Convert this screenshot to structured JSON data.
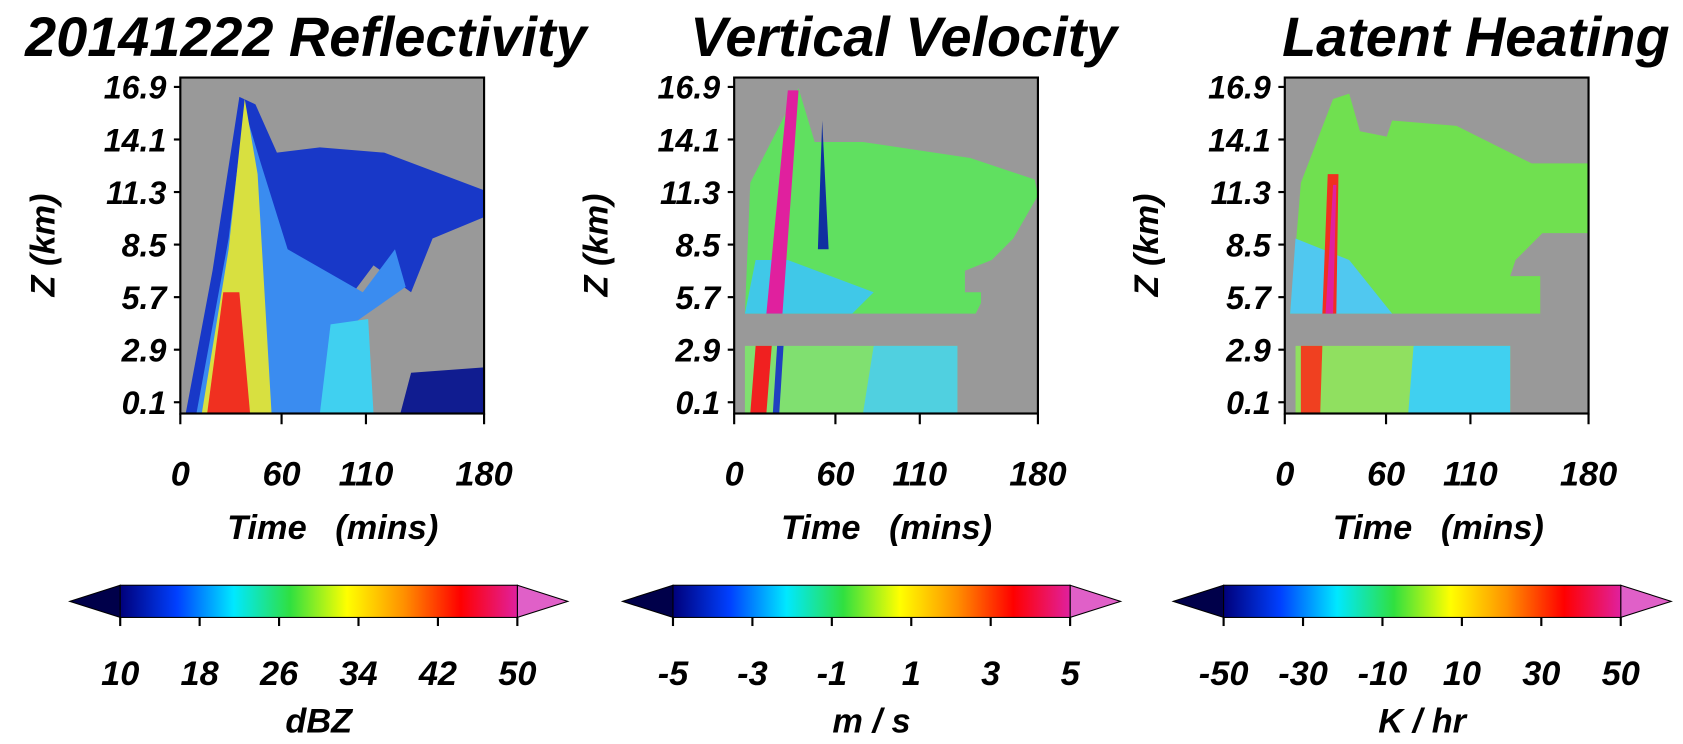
{
  "chart_data": [
    {
      "type": "heatmap",
      "title": "20141222 Reflectivity",
      "xlabel": "Time   (mins)",
      "ylabel": "Z (km)",
      "xlim": [
        0,
        180
      ],
      "xticks": [
        0,
        60,
        110,
        180
      ],
      "ylim": [
        -0.5,
        17.4
      ],
      "yticks": [
        0.1,
        2.9,
        5.7,
        8.5,
        11.3,
        14.1,
        16.9
      ],
      "background": "#999999",
      "colorbar": {
        "label": "dBZ",
        "lim": [
          10,
          50
        ],
        "ticks": [
          10,
          18,
          26,
          34,
          42,
          50
        ],
        "colors": [
          "#00007a",
          "#0040ff",
          "#00e8ff",
          "#30e040",
          "#ffff00",
          "#ff9000",
          "#ff0000",
          "#e0209e"
        ],
        "extend_colors": [
          "#00004a",
          "#e060c8"
        ]
      }
    },
    {
      "type": "heatmap",
      "title": "Vertical Velocity",
      "xlabel": "Time   (mins)",
      "ylabel": "Z (km)",
      "xlim": [
        0,
        180
      ],
      "xticks": [
        0,
        60,
        110,
        180
      ],
      "ylim": [
        -0.5,
        17.4
      ],
      "yticks": [
        0.1,
        2.9,
        5.7,
        8.5,
        11.3,
        14.1,
        16.9
      ],
      "background": "#999999",
      "colorbar": {
        "label": "m / s",
        "lim": [
          -5,
          5
        ],
        "ticks": [
          -5,
          -3,
          -1,
          1,
          3,
          5
        ],
        "colors": [
          "#00007a",
          "#0040ff",
          "#00e8ff",
          "#30e040",
          "#ffff00",
          "#ff9000",
          "#ff0000",
          "#e0209e"
        ],
        "extend_colors": [
          "#00004a",
          "#e060c8"
        ]
      }
    },
    {
      "type": "heatmap",
      "title": "Latent Heating",
      "xlabel": "Time   (mins)",
      "ylabel": "Z (km)",
      "xlim": [
        0,
        180
      ],
      "xticks": [
        0,
        60,
        110,
        180
      ],
      "ylim": [
        -0.5,
        17.4
      ],
      "yticks": [
        0.1,
        2.9,
        5.7,
        8.5,
        11.3,
        14.1,
        16.9
      ],
      "background": "#999999",
      "colorbar": {
        "label": "K / hr",
        "lim": [
          -50,
          50
        ],
        "ticks": [
          -50,
          -30,
          -10,
          10,
          30,
          50
        ],
        "colors": [
          "#00007a",
          "#0040ff",
          "#00e8ff",
          "#30e040",
          "#ffff00",
          "#ff9000",
          "#ff0000",
          "#e0209e"
        ],
        "extend_colors": [
          "#00004a",
          "#e060c8"
        ]
      }
    }
  ]
}
